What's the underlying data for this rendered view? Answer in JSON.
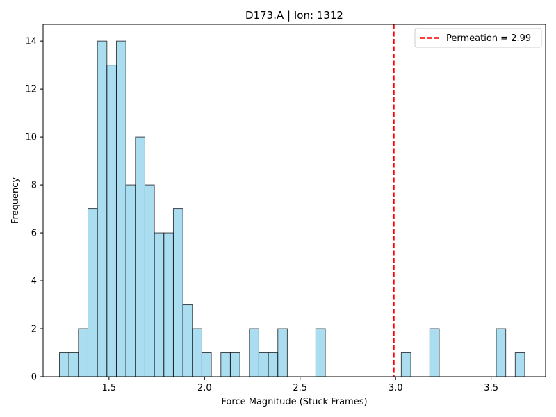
{
  "chart_data": {
    "type": "bar",
    "title": "D173.A | Ion: 1312",
    "xlabel": "Force Magnitude (Stuck Frames)",
    "ylabel": "Frequency",
    "xlim": [
      1.155,
      3.785
    ],
    "ylim": [
      0,
      14.7
    ],
    "xticks": [
      1.5,
      2.0,
      2.5,
      3.0,
      3.5
    ],
    "xtick_labels": [
      "1.5",
      "2.0",
      "2.5",
      "3.0",
      "3.5"
    ],
    "yticks": [
      0,
      2,
      4,
      6,
      8,
      10,
      12,
      14
    ],
    "ytick_labels": [
      "0",
      "2",
      "4",
      "6",
      "8",
      "10",
      "12",
      "14"
    ],
    "bin_width": 0.0497,
    "bins": [
      {
        "x": 1.2405,
        "value": 1
      },
      {
        "x": 1.2902,
        "value": 1
      },
      {
        "x": 1.3399,
        "value": 2
      },
      {
        "x": 1.3896,
        "value": 7
      },
      {
        "x": 1.4393,
        "value": 14
      },
      {
        "x": 1.489,
        "value": 13
      },
      {
        "x": 1.5387,
        "value": 14
      },
      {
        "x": 1.5884,
        "value": 8
      },
      {
        "x": 1.6381,
        "value": 10
      },
      {
        "x": 1.6878,
        "value": 8
      },
      {
        "x": 1.7375,
        "value": 6
      },
      {
        "x": 1.7872,
        "value": 6
      },
      {
        "x": 1.8369,
        "value": 7
      },
      {
        "x": 1.8866,
        "value": 3
      },
      {
        "x": 1.9363,
        "value": 2
      },
      {
        "x": 1.986,
        "value": 1
      },
      {
        "x": 2.0854,
        "value": 1
      },
      {
        "x": 2.1351,
        "value": 1
      },
      {
        "x": 2.2345,
        "value": 2
      },
      {
        "x": 2.2842,
        "value": 1
      },
      {
        "x": 2.3339,
        "value": 1
      },
      {
        "x": 2.3836,
        "value": 2
      },
      {
        "x": 2.5824,
        "value": 2
      },
      {
        "x": 3.0297,
        "value": 1
      },
      {
        "x": 3.1788,
        "value": 2
      },
      {
        "x": 3.5267,
        "value": 2
      },
      {
        "x": 3.6261,
        "value": 1
      }
    ],
    "bar_color": "#87CEEB",
    "bar_edge_color": "#000000",
    "reference_line": {
      "x": 2.99,
      "color": "#FF0000",
      "style": "dashed"
    },
    "legend": {
      "position": "top-right",
      "entries": [
        {
          "label": "Permeation = 2.99",
          "color": "#FF0000",
          "style": "dashed"
        }
      ]
    },
    "grid": false
  }
}
